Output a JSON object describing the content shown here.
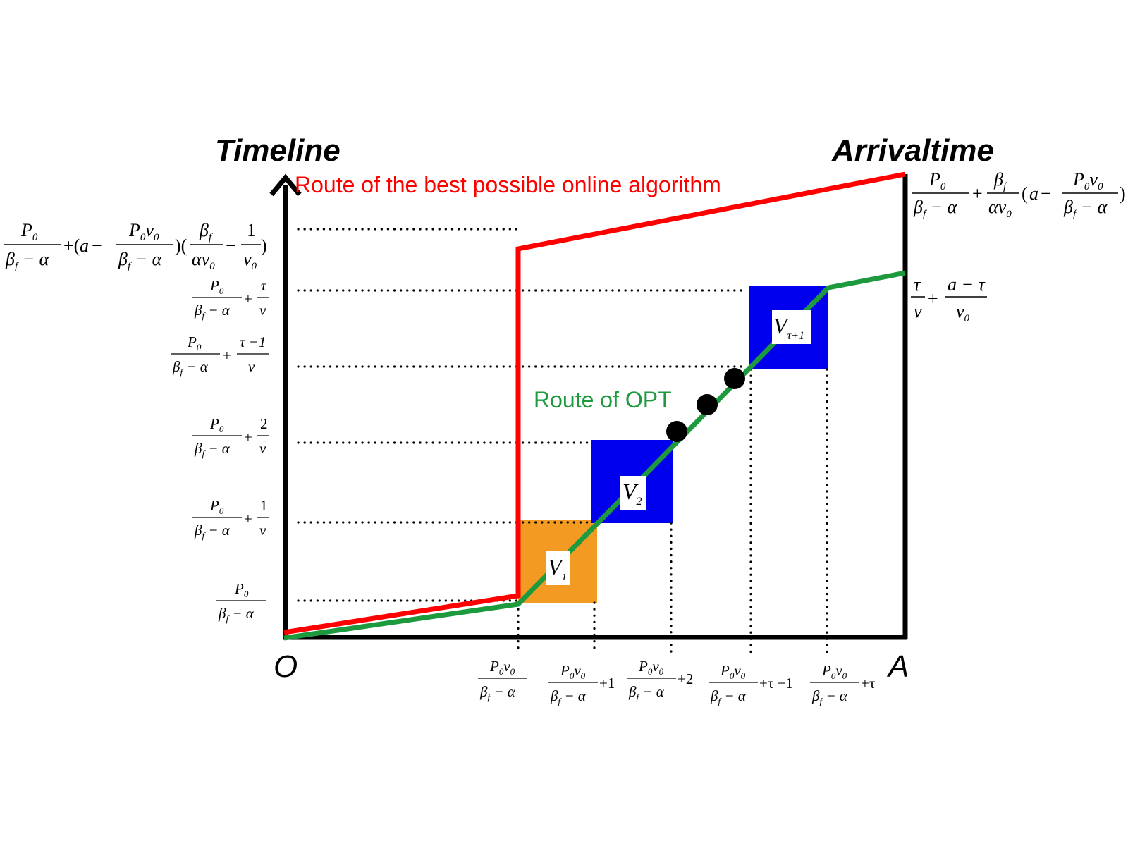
{
  "titles": {
    "timeline": "Timeline",
    "arrival": "Arrivaltime"
  },
  "axis": {
    "origin": "O",
    "end": "A"
  },
  "routes": {
    "online": "Route of the best possible online algorithm",
    "opt": "Route of OPT"
  },
  "blocks": [
    {
      "name": "V",
      "sub": "1",
      "color": "#F29A21"
    },
    {
      "name": "V",
      "sub": "2",
      "color": "#0000EE"
    },
    {
      "name": "V",
      "sub": "τ+1",
      "color": "#0000EE"
    }
  ],
  "colors": {
    "online_route": "#FF0000",
    "opt_route": "#1E9A3E",
    "axis": "#000000"
  },
  "y_labels": {
    "top": {
      "f1_num": "P",
      "f1_num_sub": "0",
      "f1_den": "β",
      "f1_den_sub": "f",
      "f1_den_rest": " − α",
      "plus1": "+(",
      "a": "a",
      "minus": "−",
      "f2_num": "P",
      "f2_num_sub": "0",
      "f2_num_v": "v",
      "f2_num_v_sub": "0",
      "f2_den": "β",
      "f2_den_sub": "f",
      "f2_den_rest": " − α",
      "paren": ")(",
      "f3_num": "β",
      "f3_num_sub": "f",
      "f3_den": "αv",
      "f3_den_sub": "0",
      "minus2": "−",
      "f4_num": "1",
      "f4_den": "v",
      "f4_den_sub": "0",
      "close": ")"
    },
    "tau_over_v": {
      "num": "P",
      "num_sub": "0",
      "den": "β",
      "den_sub": "f",
      "den_rest": " − α",
      "plus": "+",
      "n2": "τ",
      "d2": "v"
    },
    "tau_minus_1": {
      "num": "P",
      "num_sub": "0",
      "den": "β",
      "den_sub": "f",
      "den_rest": " − α",
      "plus": "+",
      "n2": "τ −1",
      "d2": "v"
    },
    "two_over_v": {
      "num": "P",
      "num_sub": "0",
      "den": "β",
      "den_sub": "f",
      "den_rest": " − α",
      "plus": "+",
      "n2": "2",
      "d2": "v"
    },
    "one_over_v": {
      "num": "P",
      "num_sub": "0",
      "den": "β",
      "den_sub": "f",
      "den_rest": " − α",
      "plus": "+",
      "n2": "1",
      "d2": "v"
    },
    "base": {
      "num": "P",
      "num_sub": "0",
      "den": "β",
      "den_sub": "f",
      "den_rest": " − α"
    }
  },
  "right_labels": {
    "top": {
      "f1_num": "P",
      "f1_num_sub": "0",
      "f1_den": "β",
      "f1_den_sub": "f",
      "f1_den_rest": " − α",
      "plus": "+",
      "f2_num": "β",
      "f2_num_sub": "f",
      "f2_den": "αv",
      "f2_den_sub": "0",
      "open": "(",
      "a": "a",
      "minus": "−",
      "f3_num": "P",
      "f3_num_sub": "0",
      "f3_num_v": "v",
      "f3_num_v_sub": "0",
      "f3_den": "β",
      "f3_den_sub": "f",
      "f3_den_rest": " − α",
      "close": ")"
    },
    "opt_end": {
      "n1": "τ",
      "d1": "v",
      "plus": "+",
      "n2": "a − τ",
      "d2": "v",
      "d2_sub": "0"
    }
  },
  "x_labels": [
    {
      "num": "P",
      "num_sub": "0",
      "num_v": "v",
      "num_v_sub": "0",
      "den": "β",
      "den_sub": "f",
      "den_rest": " − α",
      "suffix": ""
    },
    {
      "num": "P",
      "num_sub": "0",
      "num_v": "v",
      "num_v_sub": "0",
      "den": "β",
      "den_sub": "f",
      "den_rest": " − α",
      "suffix": "+1"
    },
    {
      "num": "P",
      "num_sub": "0",
      "num_v": "v",
      "num_v_sub": "0",
      "den": "β",
      "den_sub": "f",
      "den_rest": " − α",
      "suffix": "+2"
    },
    {
      "num": "P",
      "num_sub": "0",
      "num_v": "v",
      "num_v_sub": "0",
      "den": "β",
      "den_sub": "f",
      "den_rest": " − α",
      "suffix": "+τ −1"
    },
    {
      "num": "P",
      "num_sub": "0",
      "num_v": "v",
      "num_v_sub": "0",
      "den": "β",
      "den_sub": "f",
      "den_rest": " − α",
      "suffix": "+τ"
    }
  ]
}
